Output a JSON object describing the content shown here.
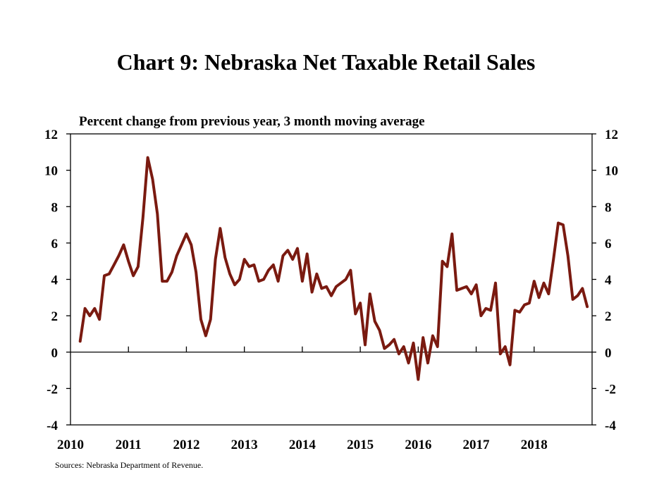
{
  "chart_data": {
    "type": "line",
    "title": "Chart 9: Nebraska Net Taxable Retail Sales",
    "subtitle": "Percent change from previous year, 3 month moving average",
    "source": "Sources: Nebraska Department of Revenue.",
    "xlabel": "",
    "ylabel": "",
    "ylim": [
      -4,
      12
    ],
    "yticks": [
      "12",
      "10",
      "8",
      "6",
      "4",
      "2",
      "0",
      "-2",
      "-4"
    ],
    "ytick_values": [
      12,
      10,
      8,
      6,
      4,
      2,
      0,
      -2,
      -4
    ],
    "xticks": [
      "2010",
      "2011",
      "2012",
      "2013",
      "2014",
      "2015",
      "2016",
      "2017",
      "2018"
    ],
    "xtick_years": [
      2010,
      2011,
      2012,
      2013,
      2014,
      2015,
      2016,
      2017,
      2018
    ],
    "xlim": [
      2010,
      2019
    ],
    "grid": false,
    "zero_line": true,
    "line_color": "#7a1a10",
    "series": [
      {
        "name": "",
        "x": [
          "2010-03",
          "2010-04",
          "2010-05",
          "2010-06",
          "2010-07",
          "2010-08",
          "2010-09",
          "2010-10",
          "2010-11",
          "2010-12",
          "2011-01",
          "2011-02",
          "2011-03",
          "2011-04",
          "2011-05",
          "2011-06",
          "2011-07",
          "2011-08",
          "2011-09",
          "2011-10",
          "2011-11",
          "2011-12",
          "2012-01",
          "2012-02",
          "2012-03",
          "2012-04",
          "2012-05",
          "2012-06",
          "2012-07",
          "2012-08",
          "2012-09",
          "2012-10",
          "2012-11",
          "2012-12",
          "2013-01",
          "2013-02",
          "2013-03",
          "2013-04",
          "2013-05",
          "2013-06",
          "2013-07",
          "2013-08",
          "2013-09",
          "2013-10",
          "2013-11",
          "2013-12",
          "2014-01",
          "2014-02",
          "2014-03",
          "2014-04",
          "2014-05",
          "2014-06",
          "2014-07",
          "2014-08",
          "2014-09",
          "2014-10",
          "2014-11",
          "2014-12",
          "2015-01",
          "2015-02",
          "2015-03",
          "2015-04",
          "2015-05",
          "2015-06",
          "2015-07",
          "2015-08",
          "2015-09",
          "2015-10",
          "2015-11",
          "2015-12",
          "2016-01",
          "2016-02",
          "2016-03",
          "2016-04",
          "2016-05",
          "2016-06",
          "2016-07",
          "2016-08",
          "2016-09",
          "2016-10",
          "2016-11",
          "2016-12",
          "2017-01",
          "2017-02",
          "2017-03",
          "2017-04",
          "2017-05",
          "2017-06",
          "2017-07",
          "2017-08",
          "2017-09",
          "2017-10",
          "2017-11",
          "2017-12",
          "2018-01",
          "2018-02",
          "2018-03",
          "2018-04",
          "2018-05",
          "2018-06",
          "2018-07",
          "2018-08",
          "2018-09",
          "2018-10",
          "2018-11",
          "2018-12"
        ],
        "values": [
          0.6,
          2.4,
          2.0,
          2.4,
          1.8,
          4.2,
          4.3,
          4.8,
          5.3,
          5.9,
          5.0,
          4.2,
          4.7,
          7.4,
          10.7,
          9.5,
          7.6,
          3.9,
          3.9,
          4.4,
          5.3,
          5.9,
          6.5,
          5.9,
          4.4,
          1.8,
          0.9,
          1.8,
          5.1,
          6.8,
          5.2,
          4.3,
          3.7,
          4.0,
          5.1,
          4.7,
          4.8,
          3.9,
          4.0,
          4.5,
          4.8,
          3.9,
          5.3,
          5.6,
          5.1,
          5.7,
          3.9,
          5.4,
          3.3,
          4.3,
          3.5,
          3.6,
          3.1,
          3.6,
          3.8,
          4.0,
          4.5,
          2.1,
          2.7,
          0.4,
          3.2,
          1.7,
          1.2,
          0.2,
          0.4,
          0.7,
          -0.1,
          0.3,
          -0.6,
          0.5,
          -1.5,
          0.8,
          -0.6,
          0.9,
          0.3,
          5.0,
          4.7,
          6.5,
          3.4,
          3.5,
          3.6,
          3.2,
          3.7,
          2.0,
          2.4,
          2.3,
          3.8,
          -0.1,
          0.3,
          -0.7,
          2.3,
          2.2,
          2.6,
          2.7,
          3.9,
          3.0,
          3.8,
          3.2,
          5.1,
          7.1,
          7.0,
          5.3,
          2.9,
          3.1,
          3.5,
          2.5
        ]
      }
    ]
  }
}
